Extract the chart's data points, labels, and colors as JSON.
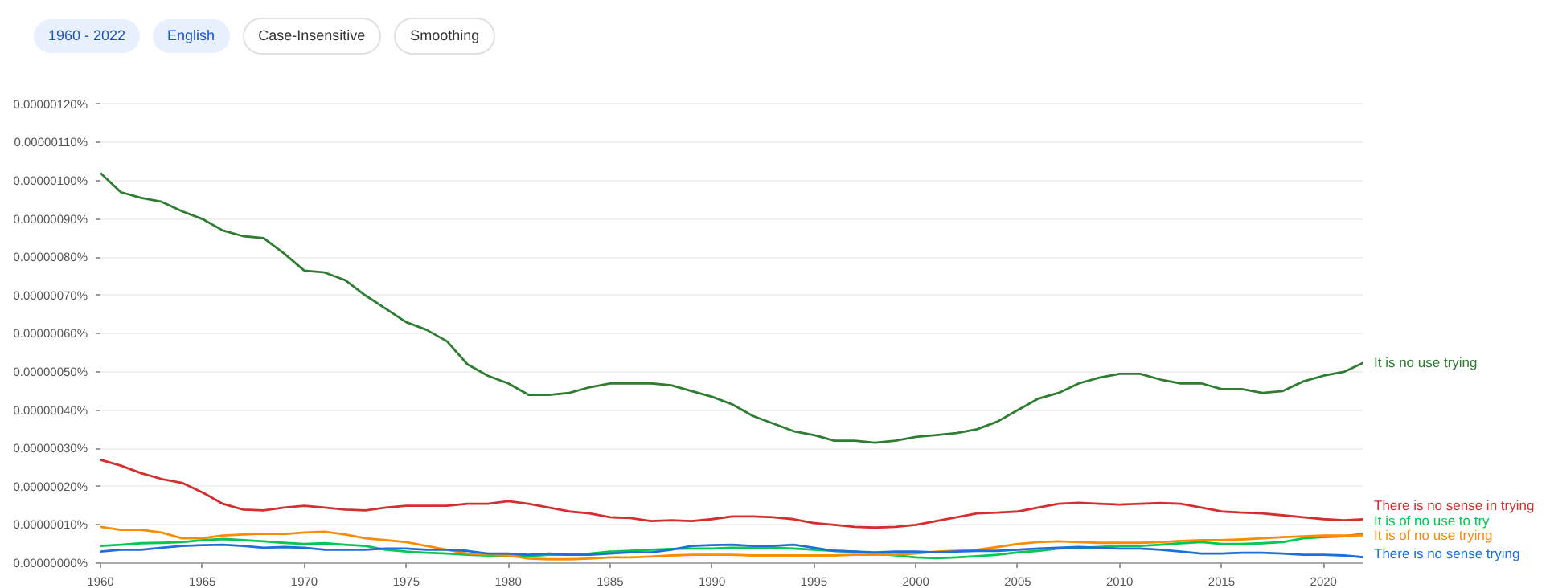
{
  "chart_data": {
    "type": "line",
    "annotations": [
      "1960 - 2022",
      "English",
      "Case-Insensitive",
      "Smoothing"
    ],
    "x": [
      1960,
      1961,
      1962,
      1963,
      1964,
      1965,
      1966,
      1967,
      1968,
      1969,
      1970,
      1971,
      1972,
      1973,
      1974,
      1975,
      1976,
      1977,
      1978,
      1979,
      1980,
      1981,
      1982,
      1983,
      1984,
      1985,
      1986,
      1987,
      1988,
      1989,
      1990,
      1991,
      1992,
      1993,
      1994,
      1995,
      1996,
      1997,
      1998,
      1999,
      2000,
      2001,
      2002,
      2003,
      2004,
      2005,
      2006,
      2007,
      2008,
      2009,
      2010,
      2011,
      2012,
      2013,
      2014,
      2015,
      2016,
      2017,
      2018,
      2019,
      2020,
      2021,
      2022
    ],
    "series": [
      {
        "name": "It is no use trying",
        "color": "#2e7d32",
        "values": [
          1.02e-06,
          9.7e-07,
          9.55e-07,
          9.45e-07,
          9.2e-07,
          9e-07,
          8.7e-07,
          8.55e-07,
          8.5e-07,
          8.1e-07,
          7.65e-07,
          7.6e-07,
          7.4e-07,
          7e-07,
          6.65e-07,
          6.3e-07,
          6.1e-07,
          5.8e-07,
          5.2e-07,
          4.9e-07,
          4.7e-07,
          4.4e-07,
          4.4e-07,
          4.45e-07,
          4.6e-07,
          4.7e-07,
          4.7e-07,
          4.7e-07,
          4.65e-07,
          4.5e-07,
          4.35e-07,
          4.15e-07,
          3.85e-07,
          3.65e-07,
          3.45e-07,
          3.35e-07,
          3.2e-07,
          3.2e-07,
          3.15e-07,
          3.2e-07,
          3.3e-07,
          3.35e-07,
          3.4e-07,
          3.5e-07,
          3.7e-07,
          4e-07,
          4.3e-07,
          4.45e-07,
          4.7e-07,
          4.85e-07,
          4.95e-07,
          4.95e-07,
          4.8e-07,
          4.7e-07,
          4.7e-07,
          4.55e-07,
          4.55e-07,
          4.45e-07,
          4.5e-07,
          4.75e-07,
          4.9e-07,
          5e-07,
          5.25e-07
        ]
      },
      {
        "name": "There is no sense in trying",
        "color": "#d32f2f",
        "values": [
          2.7e-07,
          2.55e-07,
          2.35e-07,
          2.2e-07,
          2.1e-07,
          1.85e-07,
          1.55e-07,
          1.4e-07,
          1.38e-07,
          1.45e-07,
          1.5e-07,
          1.45e-07,
          1.4e-07,
          1.38e-07,
          1.45e-07,
          1.5e-07,
          1.5e-07,
          1.5e-07,
          1.55e-07,
          1.55e-07,
          1.62e-07,
          1.55e-07,
          1.45e-07,
          1.35e-07,
          1.3e-07,
          1.2e-07,
          1.18e-07,
          1.1e-07,
          1.12e-07,
          1.1e-07,
          1.15e-07,
          1.22e-07,
          1.22e-07,
          1.2e-07,
          1.15e-07,
          1.05e-07,
          1e-07,
          9.5e-08,
          9.3e-08,
          9.5e-08,
          1e-07,
          1.1e-07,
          1.2e-07,
          1.3e-07,
          1.32e-07,
          1.35e-07,
          1.45e-07,
          1.55e-07,
          1.58e-07,
          1.55e-07,
          1.53e-07,
          1.55e-07,
          1.57e-07,
          1.55e-07,
          1.45e-07,
          1.35e-07,
          1.32e-07,
          1.3e-07,
          1.25e-07,
          1.2e-07,
          1.15e-07,
          1.12e-07,
          1.15e-07
        ]
      },
      {
        "name": "It is of no use to try",
        "color": "#00c853",
        "values": [
          4.5e-08,
          4.8e-08,
          5.2e-08,
          5.3e-08,
          5.5e-08,
          6e-08,
          6.3e-08,
          6e-08,
          5.7e-08,
          5.3e-08,
          5e-08,
          5.2e-08,
          4.8e-08,
          4.5e-08,
          3.5e-08,
          3e-08,
          2.7e-08,
          2.5e-08,
          2.2e-08,
          2e-08,
          2e-08,
          1.8e-08,
          2.2e-08,
          2.2e-08,
          2.5e-08,
          3e-08,
          3.2e-08,
          3.5e-08,
          3.7e-08,
          3.8e-08,
          3.8e-08,
          4e-08,
          4e-08,
          4e-08,
          3.8e-08,
          3.5e-08,
          3.2e-08,
          3e-08,
          2.5e-08,
          2e-08,
          1.5e-08,
          1.3e-08,
          1.5e-08,
          1.8e-08,
          2.2e-08,
          2.8e-08,
          3.2e-08,
          3.8e-08,
          4e-08,
          4.2e-08,
          4.5e-08,
          4.5e-08,
          4.8e-08,
          5.2e-08,
          5.5e-08,
          5e-08,
          5e-08,
          5.2e-08,
          5.5e-08,
          6.5e-08,
          6.8e-08,
          7e-08,
          7.7e-08
        ]
      },
      {
        "name": "It is of no use trying",
        "color": "#fb8c00",
        "values": [
          9.5e-08,
          8.7e-08,
          8.7e-08,
          8e-08,
          6.5e-08,
          6.5e-08,
          7.2e-08,
          7.5e-08,
          7.7e-08,
          7.6e-08,
          8e-08,
          8.2e-08,
          7.5e-08,
          6.5e-08,
          6e-08,
          5.5e-08,
          4.5e-08,
          3.5e-08,
          2.5e-08,
          2.2e-08,
          2e-08,
          1.2e-08,
          1e-08,
          1e-08,
          1.2e-08,
          1.5e-08,
          1.5e-08,
          1.7e-08,
          2e-08,
          2.2e-08,
          2.2e-08,
          2.2e-08,
          2e-08,
          2e-08,
          2e-08,
          2e-08,
          2e-08,
          2.2e-08,
          2.2e-08,
          2.2e-08,
          2.5e-08,
          3e-08,
          3.2e-08,
          3.5e-08,
          4.2e-08,
          5e-08,
          5.5e-08,
          5.7e-08,
          5.5e-08,
          5.3e-08,
          5.3e-08,
          5.3e-08,
          5.5e-08,
          5.8e-08,
          6e-08,
          6e-08,
          6.2e-08,
          6.5e-08,
          6.8e-08,
          7e-08,
          7.2e-08,
          7.2e-08,
          7.3e-08
        ]
      },
      {
        "name": "There is no sense trying",
        "color": "#1e6fd9",
        "values": [
          3e-08,
          3.5e-08,
          3.5e-08,
          4e-08,
          4.5e-08,
          4.7e-08,
          4.8e-08,
          4.5e-08,
          4e-08,
          4.2e-08,
          4e-08,
          3.5e-08,
          3.5e-08,
          3.5e-08,
          3.8e-08,
          3.8e-08,
          3.5e-08,
          3.5e-08,
          3.2e-08,
          2.5e-08,
          2.5e-08,
          2.2e-08,
          2.5e-08,
          2.2e-08,
          2.2e-08,
          2.5e-08,
          2.8e-08,
          2.8e-08,
          3.5e-08,
          4.5e-08,
          4.7e-08,
          4.8e-08,
          4.5e-08,
          4.5e-08,
          4.8e-08,
          4e-08,
          3.2e-08,
          3e-08,
          2.8e-08,
          3e-08,
          3e-08,
          2.8e-08,
          3e-08,
          3.2e-08,
          3.2e-08,
          3.5e-08,
          3.8e-08,
          4e-08,
          4.2e-08,
          4e-08,
          3.8e-08,
          3.8e-08,
          3.5e-08,
          3e-08,
          2.5e-08,
          2.5e-08,
          2.7e-08,
          2.7e-08,
          2.5e-08,
          2.2e-08,
          2.2e-08,
          2e-08,
          1.5e-08
        ]
      }
    ],
    "xlim": [
      1960,
      2022
    ],
    "xticks": [
      1960,
      1965,
      1970,
      1975,
      1980,
      1985,
      1990,
      1995,
      2000,
      2005,
      2010,
      2015,
      2020
    ],
    "ylim": [
      0,
      1.21e-06
    ],
    "yticks": [
      {
        "value": 0,
        "label": "0.00000000%"
      },
      {
        "value": 1e-07,
        "label": "0.00000010%"
      },
      {
        "value": 2e-07,
        "label": "0.00000020%"
      },
      {
        "value": 3e-07,
        "label": "0.00000030%"
      },
      {
        "value": 4e-07,
        "label": "0.00000040%"
      },
      {
        "value": 5e-07,
        "label": "0.00000050%"
      },
      {
        "value": 6e-07,
        "label": "0.00000060%"
      },
      {
        "value": 7e-07,
        "label": "0.00000070%"
      },
      {
        "value": 8e-07,
        "label": "0.00000080%"
      },
      {
        "value": 9e-07,
        "label": "0.00000090%"
      },
      {
        "value": 1e-06,
        "label": "0.00000100%"
      },
      {
        "value": 1.1e-06,
        "label": "0.00000110%"
      },
      {
        "value": 1.2e-06,
        "label": "0.00000120%"
      }
    ],
    "grid": "y"
  }
}
